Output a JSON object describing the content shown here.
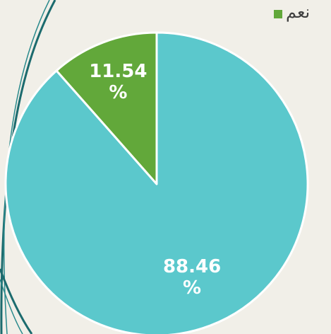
{
  "chart_data": {
    "type": "pie",
    "categories": [
      null,
      "نعم"
    ],
    "values": [
      88.46,
      11.54
    ],
    "value_labels": [
      "88.46 %",
      "11.54 %"
    ],
    "colors": [
      "#5bc8cc",
      "#62a83a"
    ],
    "legend": "top-right"
  }
}
